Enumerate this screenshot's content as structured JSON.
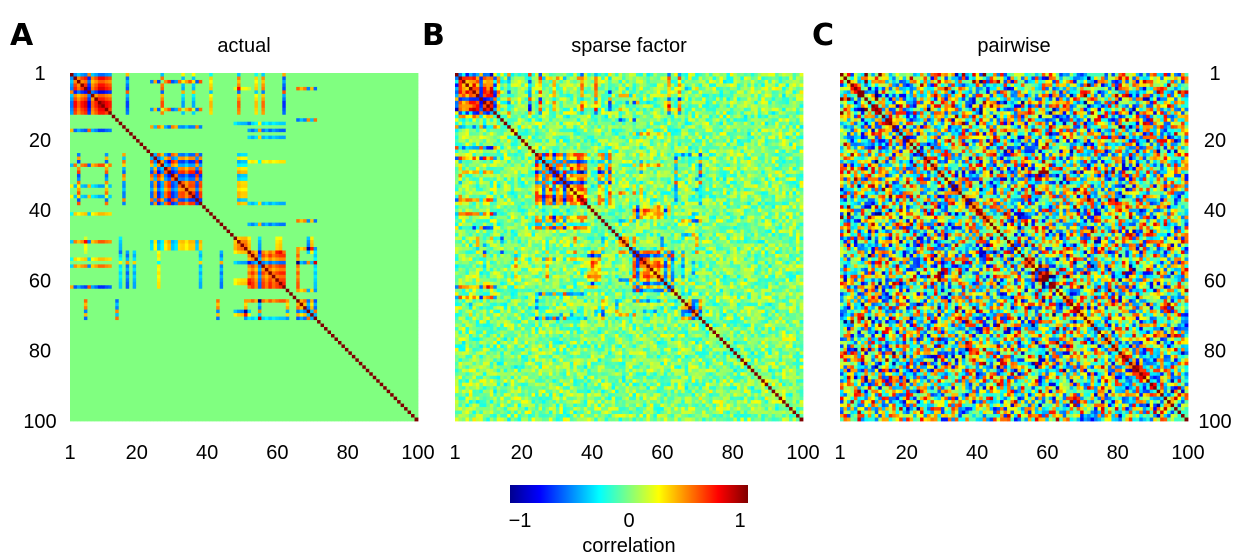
{
  "chart_data": [
    {
      "type": "heatmap",
      "panel": "A",
      "title": "actual",
      "xticks": [
        "1",
        "20",
        "40",
        "60",
        "80",
        "100"
      ],
      "yticks": [
        "1",
        "20",
        "40",
        "60",
        "80",
        "100"
      ],
      "xlim": [
        1,
        100
      ],
      "ylim": [
        1,
        100
      ],
      "matrix_size": 100,
      "value_range": [
        -1,
        1
      ],
      "blocks": [
        {
          "start": 1,
          "end": 12,
          "strength": 0.9
        },
        {
          "start": 24,
          "end": 38,
          "strength": 0.8
        },
        {
          "start": 48,
          "end": 52,
          "strength": 0.6
        },
        {
          "start": 52,
          "end": 62,
          "strength": 0.75
        },
        {
          "start": 66,
          "end": 71,
          "strength": 0.7
        }
      ],
      "noise_level": 0,
      "diagonal": 1
    },
    {
      "type": "heatmap",
      "panel": "B",
      "title": "sparse factor",
      "xticks": [
        "1",
        "20",
        "40",
        "60",
        "80",
        "100"
      ],
      "yticks": [],
      "xlim": [
        1,
        100
      ],
      "ylim": [
        1,
        100
      ],
      "matrix_size": 100,
      "value_range": [
        -1,
        1
      ],
      "blocks": [
        {
          "start": 1,
          "end": 12,
          "strength": 0.85
        },
        {
          "start": 24,
          "end": 38,
          "strength": 0.75
        },
        {
          "start": 48,
          "end": 52,
          "strength": 0.55
        },
        {
          "start": 52,
          "end": 62,
          "strength": 0.7
        },
        {
          "start": 66,
          "end": 71,
          "strength": 0.65
        }
      ],
      "noise_level": 0.25,
      "diagonal": 1
    },
    {
      "type": "heatmap",
      "panel": "C",
      "title": "pairwise",
      "xticks": [
        "1",
        "20",
        "40",
        "60",
        "80",
        "100"
      ],
      "yticks": [
        "1",
        "20",
        "40",
        "60",
        "80",
        "100"
      ],
      "xlim": [
        1,
        100
      ],
      "ylim": [
        1,
        100
      ],
      "matrix_size": 100,
      "value_range": [
        -1,
        1
      ],
      "blocks": [
        {
          "start": 1,
          "end": 12,
          "strength": 0.6
        },
        {
          "start": 56,
          "end": 62,
          "strength": 0.7
        }
      ],
      "noise_level": 0.85,
      "diagonal": 1
    }
  ],
  "colorbar": {
    "colormap": "jet",
    "ticks": [
      "−1",
      "0",
      "1"
    ],
    "range": [
      -1,
      1
    ],
    "label": "correlation"
  }
}
